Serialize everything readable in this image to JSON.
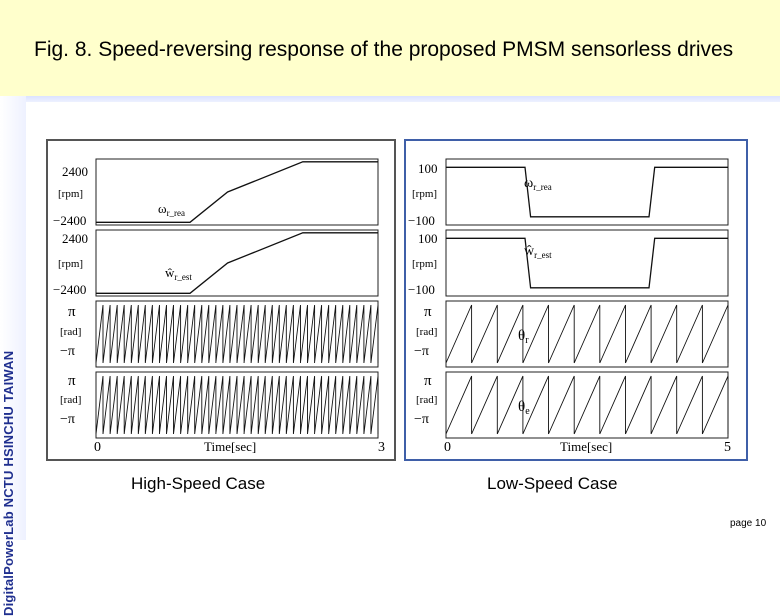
{
  "title": "Fig. 8. Speed-reversing response of the proposed PMSM sensorless drives",
  "sidebar_logo": "DigitalPowerLab NCTU HSINCHU TAIWAN",
  "captions": {
    "left": "High-Speed Case",
    "right": "Low-Speed Case"
  },
  "page_label": "page 10",
  "left_panel": {
    "rows": [
      {
        "top": "2400",
        "unit": "[rpm]",
        "bottom": "−2400",
        "label": "ωr_rea",
        "label_main": "ω",
        "label_sub": "r_rea"
      },
      {
        "top": "2400",
        "unit": "[rpm]",
        "bottom": "−2400",
        "label": "ŵr_est",
        "label_main": "ŵ",
        "label_sub": "r_est"
      },
      {
        "top": "π",
        "unit": "[rad]",
        "bottom": "−π",
        "label": "θr",
        "label_main": "θ",
        "label_sub": "r"
      },
      {
        "top": "π",
        "unit": "[rad]",
        "bottom": "−π",
        "label": "θe",
        "label_main": "θ",
        "label_sub": "e"
      }
    ],
    "x_start": "0",
    "x_label": "Time[sec]",
    "x_end": "3"
  },
  "right_panel": {
    "rows": [
      {
        "top": "100",
        "unit": "[rpm]",
        "bottom": "−100",
        "label": "ωr_rea",
        "label_main": "ω",
        "label_sub": "r_rea"
      },
      {
        "top": "100",
        "unit": "[rpm]",
        "bottom": "−100",
        "label": "ŵr_est",
        "label_main": "ŵ",
        "label_sub": "r_est"
      },
      {
        "top": "π",
        "unit": "[rad]",
        "bottom": "−π",
        "label": "θr",
        "label_main": "θ",
        "label_sub": "r"
      },
      {
        "top": "π",
        "unit": "[rad]",
        "bottom": "−π",
        "label": "θe",
        "label_main": "θ",
        "label_sub": "e"
      }
    ],
    "x_start": "0",
    "x_label": "Time[sec]",
    "x_end": "5"
  },
  "chart_data": [
    {
      "type": "line",
      "title": "High-Speed Case",
      "xlabel": "Time[sec]",
      "xlim": [
        0,
        3
      ],
      "series": [
        {
          "name": "ωr_rea",
          "ylim": [
            -2400,
            2400
          ],
          "x": [
            0,
            1.0,
            1.4,
            2.2,
            3.0
          ],
          "values": [
            -2200,
            -2200,
            0,
            2200,
            2200
          ]
        },
        {
          "name": "ŵr_est",
          "ylim": [
            -2400,
            2400
          ],
          "x": [
            0,
            1.0,
            1.4,
            2.2,
            3.0
          ],
          "values": [
            -2200,
            -2200,
            0,
            2200,
            2200
          ]
        },
        {
          "name": "θr",
          "ylim": [
            -3.14,
            3.14
          ],
          "x": [
            0,
            3
          ],
          "values": [
            -3.14,
            3.14
          ]
        },
        {
          "name": "θe",
          "ylim": [
            -3.14,
            3.14
          ],
          "x": [
            0,
            3
          ],
          "values": [
            -3.14,
            3.14
          ]
        }
      ]
    },
    {
      "type": "line",
      "title": "Low-Speed Case",
      "xlabel": "Time[sec]",
      "xlim": [
        0,
        5
      ],
      "series": [
        {
          "name": "ωr_rea",
          "ylim": [
            -100,
            100
          ],
          "x": [
            0,
            1.4,
            1.5,
            3.6,
            3.7,
            5
          ],
          "values": [
            75,
            75,
            -75,
            -75,
            75,
            75
          ]
        },
        {
          "name": "ŵr_est",
          "ylim": [
            -100,
            100
          ],
          "x": [
            0,
            1.4,
            1.5,
            3.6,
            3.7,
            5
          ],
          "values": [
            75,
            75,
            -75,
            -75,
            75,
            75
          ]
        },
        {
          "name": "θr",
          "ylim": [
            -3.14,
            3.14
          ],
          "x": [
            0,
            5
          ],
          "values": [
            -3.14,
            3.14
          ]
        },
        {
          "name": "θe",
          "ylim": [
            -3.14,
            3.14
          ],
          "x": [
            0,
            5
          ],
          "values": [
            -3.14,
            3.14
          ]
        }
      ]
    }
  ]
}
